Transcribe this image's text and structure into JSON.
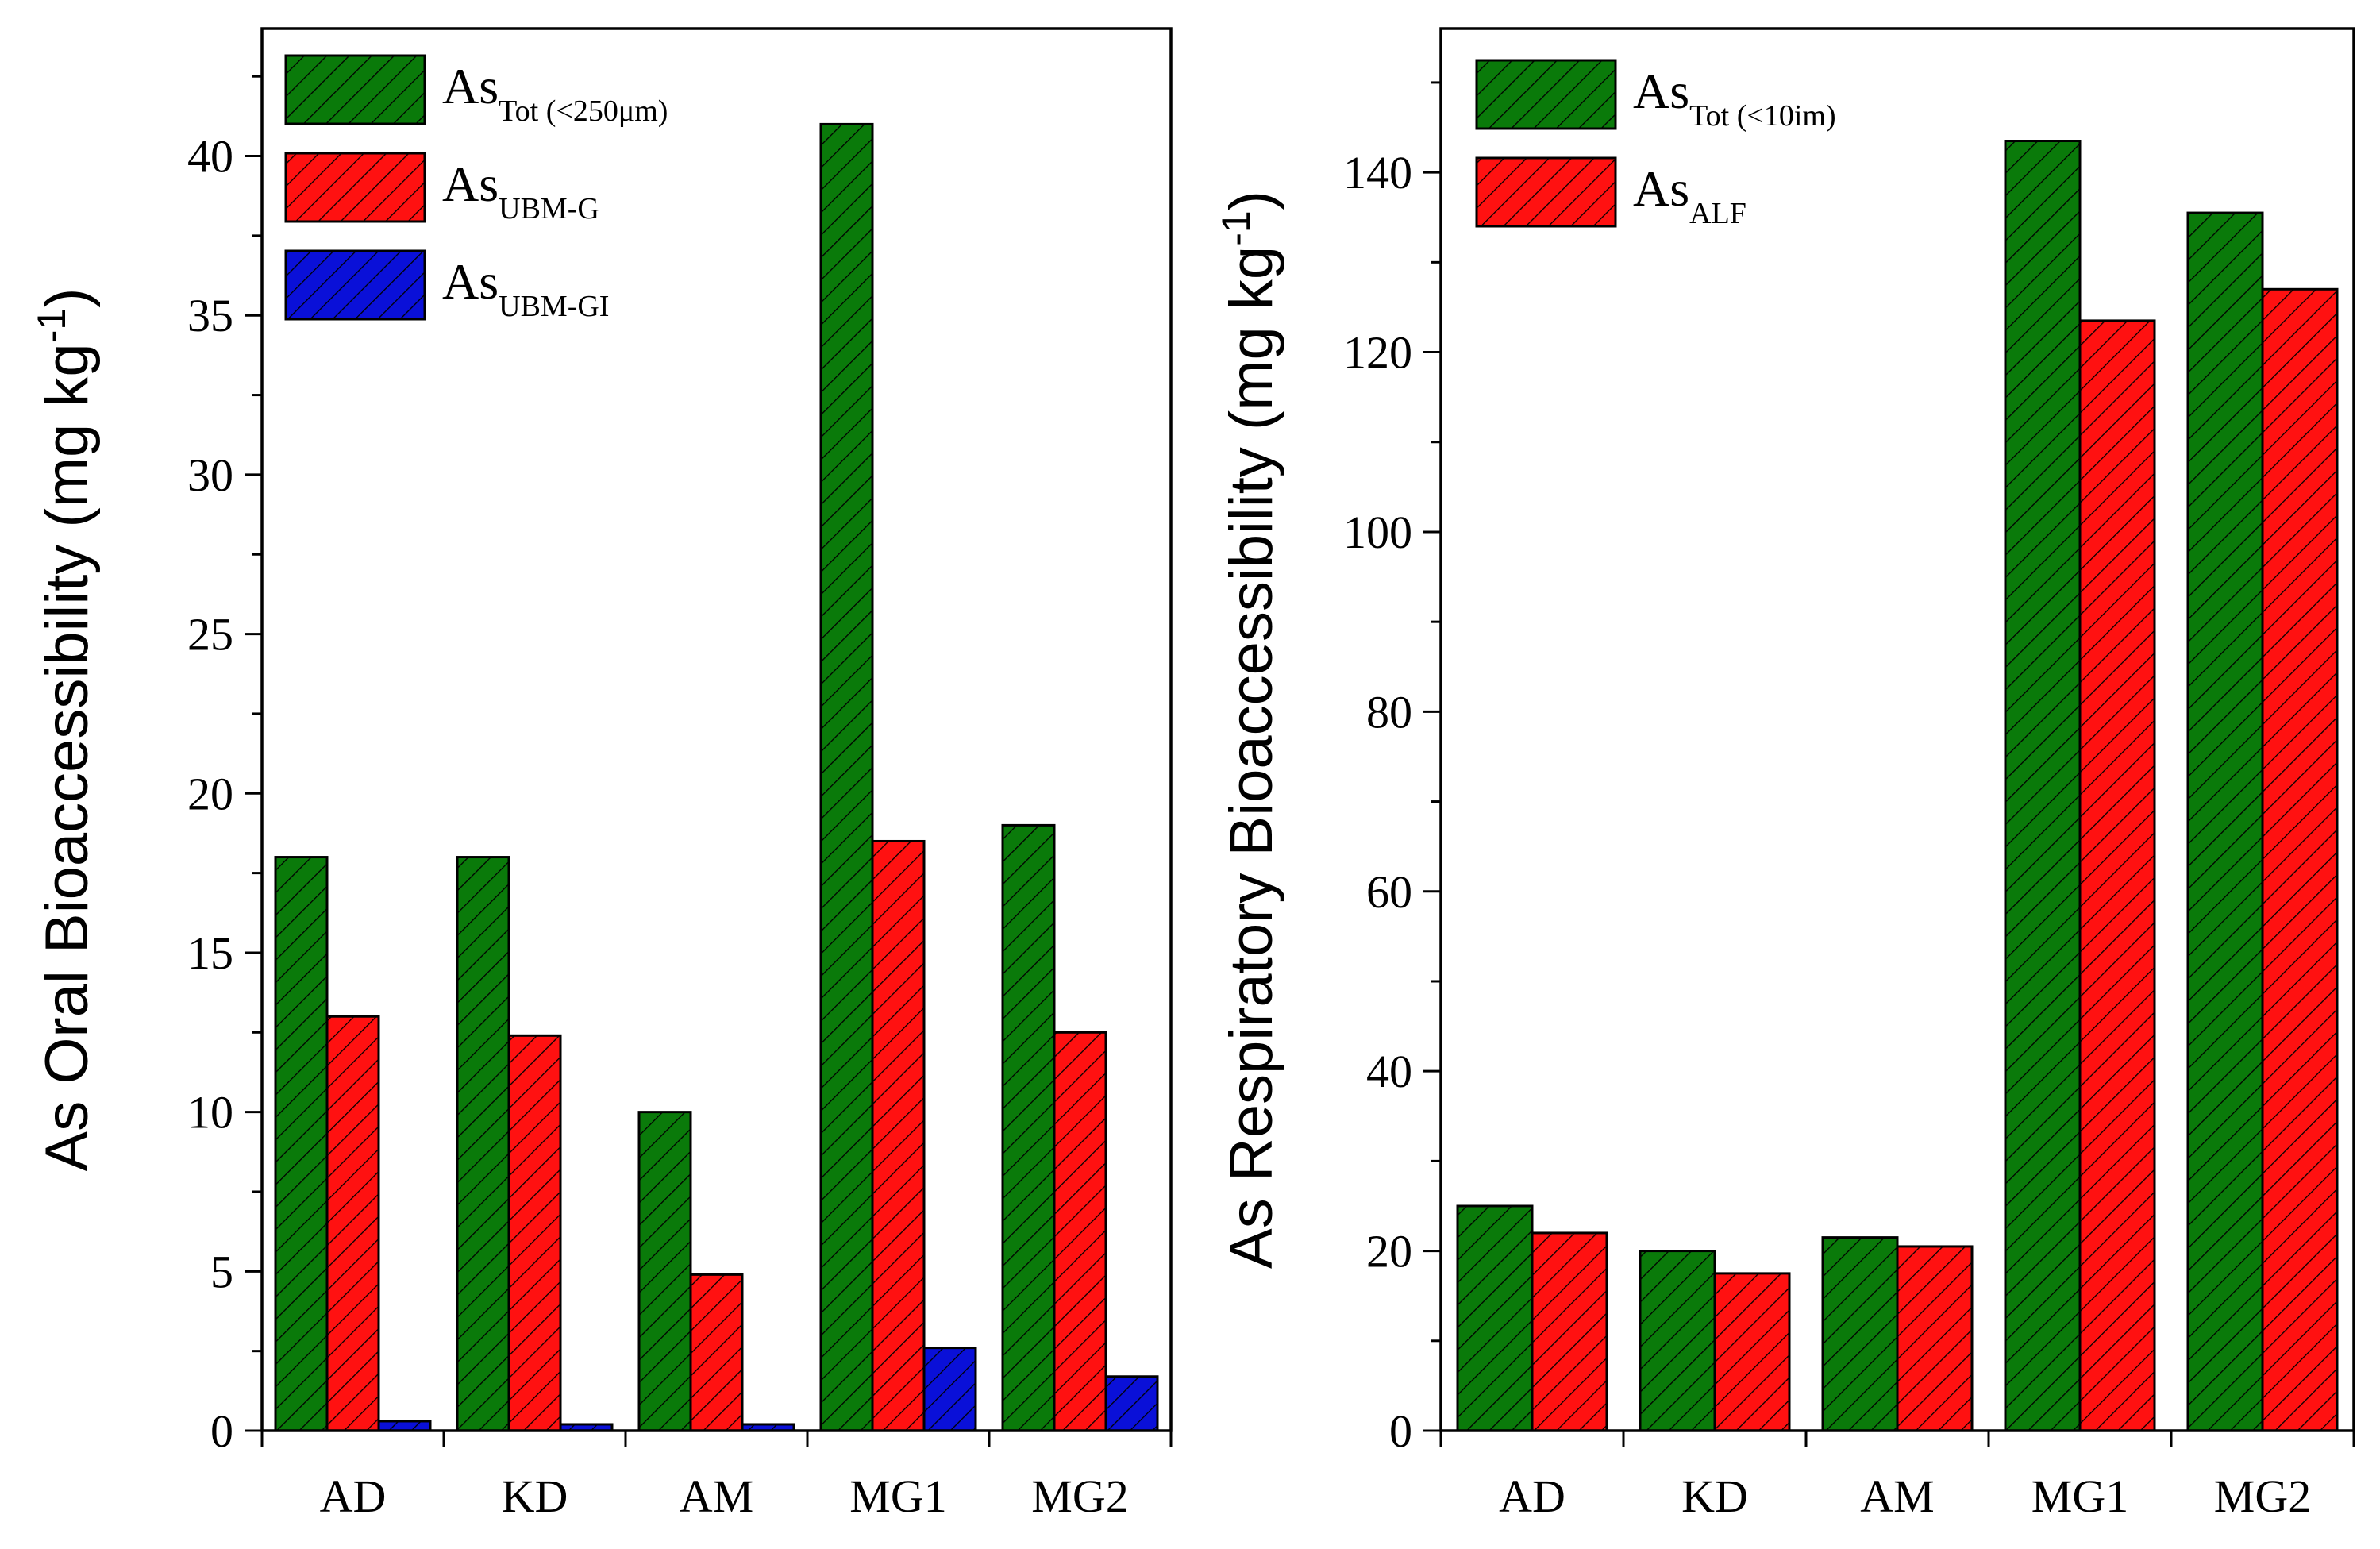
{
  "chart_data": [
    {
      "type": "bar",
      "ylabel": "As Oral Bioaccessibility (mg kg",
      "ylabel_sup": "-1",
      "ylabel_close": ")",
      "categories": [
        "AD",
        "KD",
        "AM",
        "MG1",
        "MG2"
      ],
      "ylim": [
        0,
        44
      ],
      "yticks": [
        0,
        5,
        10,
        15,
        20,
        25,
        30,
        35,
        40
      ],
      "series": [
        {
          "name": "As",
          "sub": "Tot (<250μm)",
          "color": "#0a7a0a",
          "values": [
            18,
            18,
            10,
            41,
            19
          ]
        },
        {
          "name": "As",
          "sub": "UBM-G",
          "color": "#ff1111",
          "values": [
            13,
            12.4,
            4.9,
            18.5,
            12.5
          ]
        },
        {
          "name": "As",
          "sub": "UBM-GI",
          "color": "#0a10d8",
          "values": [
            0.3,
            0.2,
            0.2,
            2.6,
            1.7
          ]
        }
      ],
      "legend_position": "top-left"
    },
    {
      "type": "bar",
      "ylabel": "As Respiratory Bioaccessibility (mg kg",
      "ylabel_sup": "-1",
      "ylabel_close": ")",
      "categories": [
        "AD",
        "KD",
        "AM",
        "MG1",
        "MG2"
      ],
      "ylim": [
        0,
        156
      ],
      "yticks": [
        0,
        20,
        40,
        60,
        80,
        100,
        120,
        140
      ],
      "series": [
        {
          "name": "As",
          "sub": "Tot (<10im)",
          "color": "#0a7a0a",
          "values": [
            25,
            20,
            21.5,
            143.5,
            135.5
          ]
        },
        {
          "name": "As",
          "sub": "ALF",
          "color": "#ff1111",
          "values": [
            22,
            17.5,
            20.5,
            123.5,
            127
          ]
        }
      ],
      "legend_position": "top-left"
    }
  ]
}
